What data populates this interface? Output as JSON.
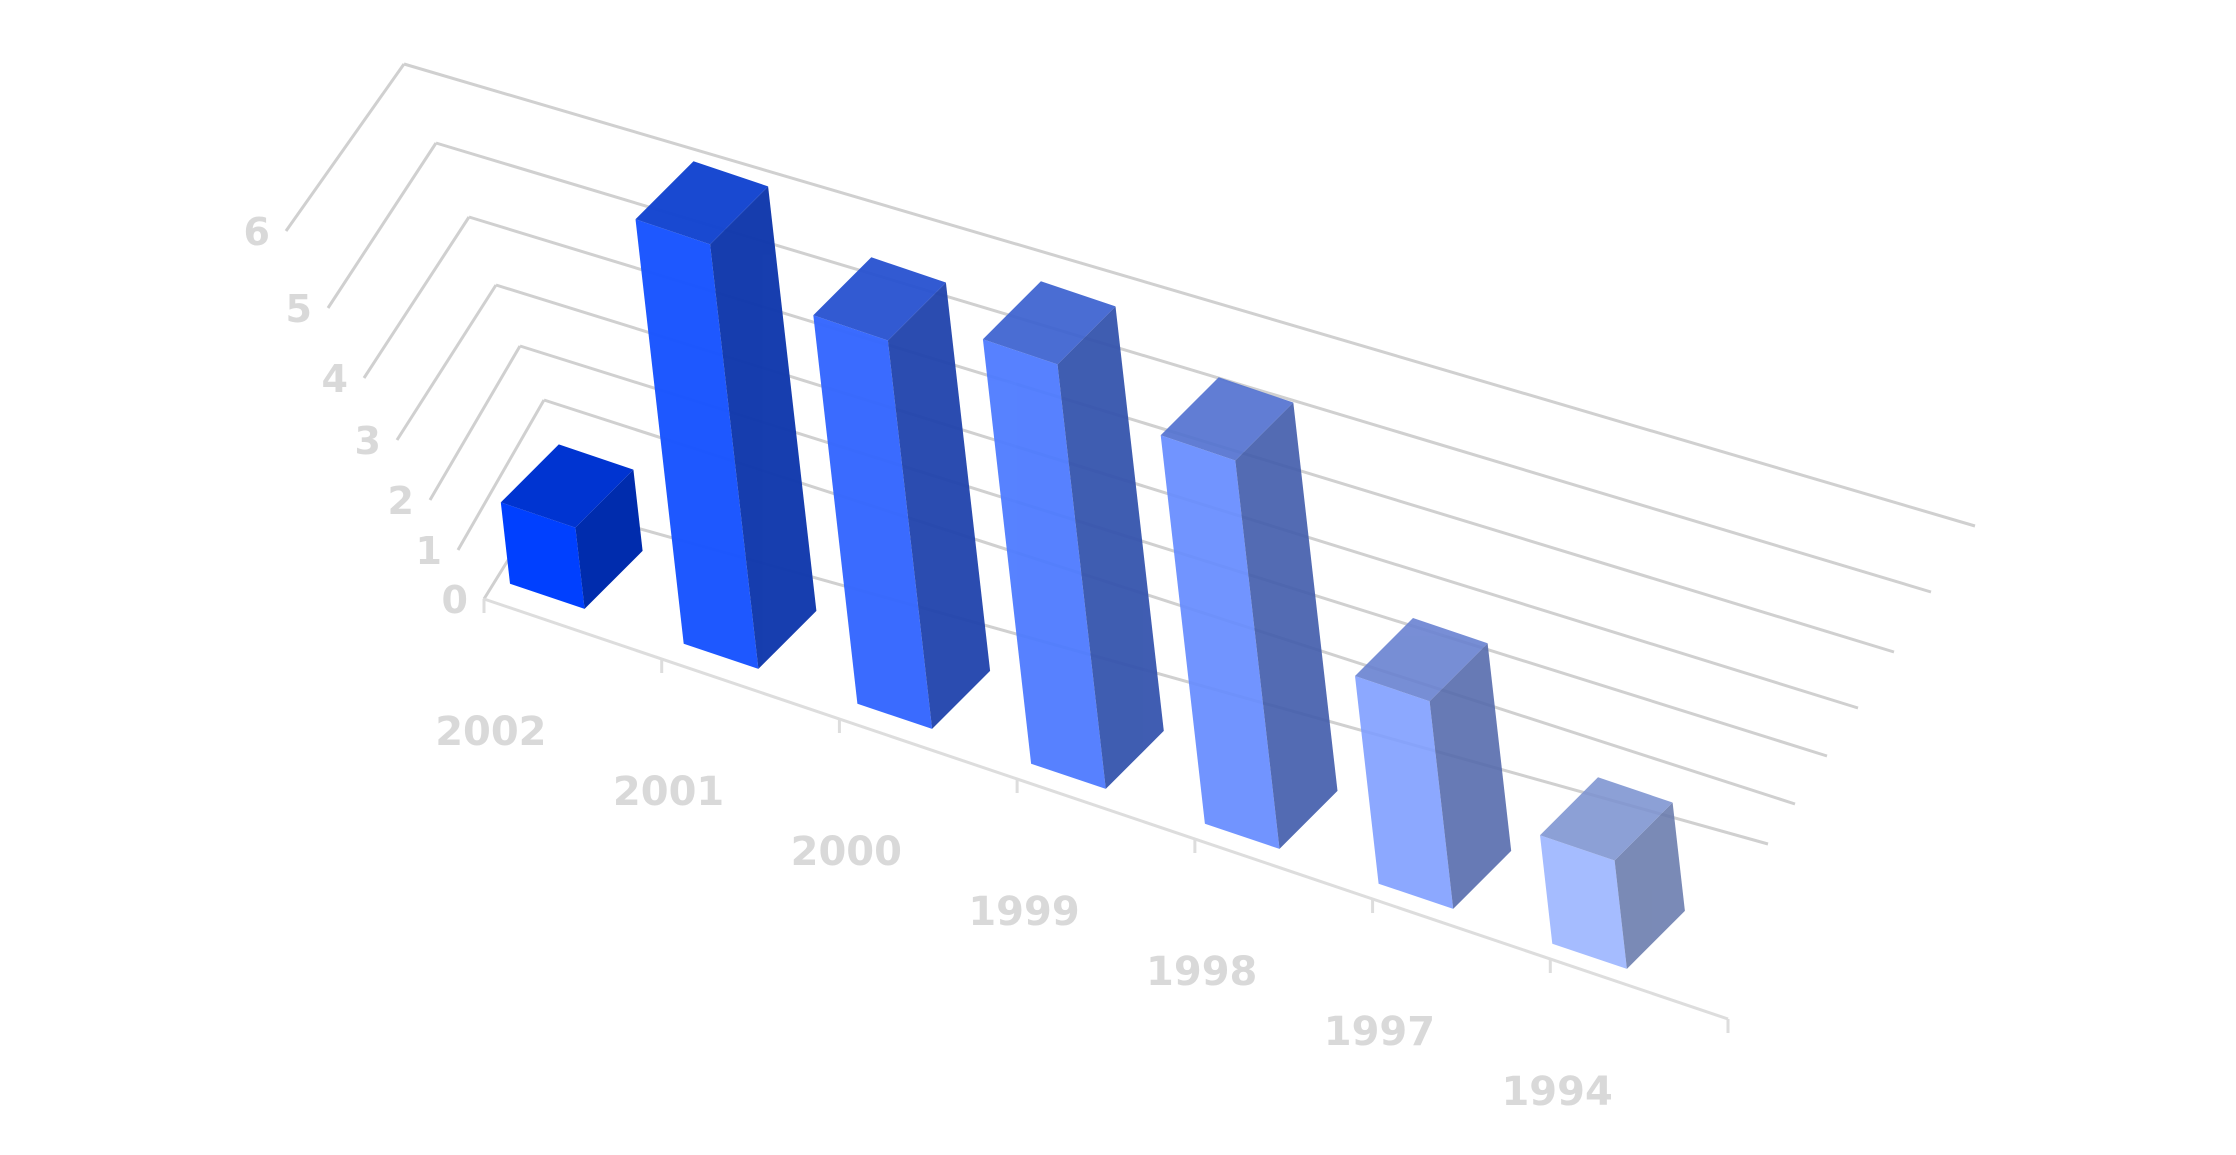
{
  "chart_data": {
    "type": "bar",
    "categories": [
      "2002",
      "2001",
      "2000",
      "1999",
      "1998",
      "1997",
      "1994"
    ],
    "values": [
      0.9,
      4.7,
      4.3,
      4.7,
      4.3,
      2.3,
      1.2
    ],
    "ylim": [
      0,
      6
    ],
    "yticks": [
      "0",
      "1",
      "2",
      "3",
      "4",
      "5",
      "6"
    ],
    "grid": true,
    "legend": "none",
    "colors": [
      "#0040ff",
      "#1a55ff",
      "#3366ff",
      "#4d7aff",
      "#668cff",
      "#809fff",
      "#99b3ff"
    ],
    "gridline_color": "#d0d0d0"
  }
}
